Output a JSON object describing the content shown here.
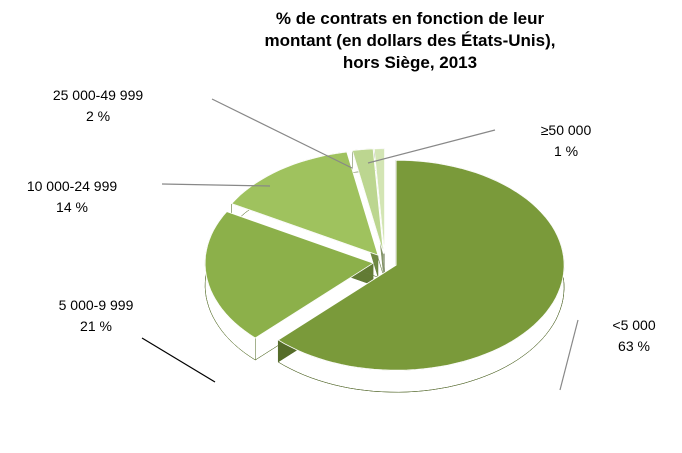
{
  "chart_data": {
    "type": "pie",
    "title": "% de contrats en fonction de leur montant (en dollars des États-Unis), hors Siège, 2013",
    "categories": [
      "<5 000",
      "5 000-9 999",
      "10 000-24 999",
      "25 000-49 999",
      "≥50 000"
    ],
    "values": [
      63,
      21,
      14,
      2,
      1
    ],
    "value_labels": [
      "63 %",
      "21 %",
      "14 %",
      "2 %",
      "1 %"
    ],
    "colors": [
      "#7a9a3a",
      "#8cb04a",
      "#9fc25e",
      "#bcd690",
      "#d3e5b4"
    ]
  }
}
